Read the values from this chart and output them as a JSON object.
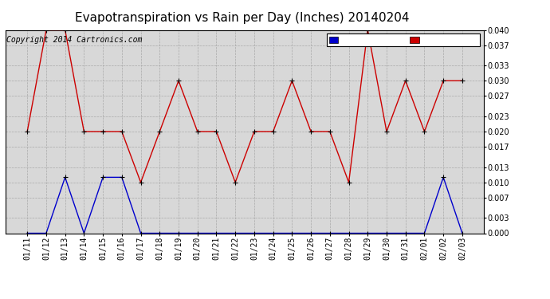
{
  "title": "Evapotranspiration vs Rain per Day (Inches) 20140204",
  "copyright": "Copyright 2014 Cartronics.com",
  "background_color": "#ffffff",
  "plot_bg_color": "#d8d8d8",
  "grid_color": "#aaaaaa",
  "x_labels": [
    "01/11",
    "01/12",
    "01/13",
    "01/14",
    "01/15",
    "01/16",
    "01/17",
    "01/18",
    "01/19",
    "01/20",
    "01/21",
    "01/22",
    "01/23",
    "01/24",
    "01/25",
    "01/26",
    "01/27",
    "01/28",
    "01/29",
    "01/30",
    "01/31",
    "02/01",
    "02/02",
    "02/03"
  ],
  "rain_values": [
    0.0,
    0.0,
    0.011,
    0.0,
    0.011,
    0.011,
    0.0,
    0.0,
    0.0,
    0.0,
    0.0,
    0.0,
    0.0,
    0.0,
    0.0,
    0.0,
    0.0,
    0.0,
    0.0,
    0.0,
    0.0,
    0.0,
    0.011,
    0.0
  ],
  "et_values": [
    0.02,
    0.04,
    0.04,
    0.02,
    0.02,
    0.02,
    0.01,
    0.02,
    0.03,
    0.02,
    0.02,
    0.01,
    0.02,
    0.02,
    0.03,
    0.02,
    0.02,
    0.01,
    0.04,
    0.02,
    0.03,
    0.02,
    0.03,
    0.03
  ],
  "rain_color": "#0000cc",
  "et_color": "#cc0000",
  "marker_color": "#000000",
  "ylim": [
    0.0,
    0.04
  ],
  "yticks": [
    0.0,
    0.003,
    0.007,
    0.01,
    0.013,
    0.017,
    0.02,
    0.023,
    0.027,
    0.03,
    0.033,
    0.037,
    0.04
  ],
  "legend_rain_bg": "#0000cc",
  "legend_et_bg": "#cc0000",
  "title_fontsize": 11,
  "copyright_fontsize": 7,
  "tick_fontsize": 7
}
